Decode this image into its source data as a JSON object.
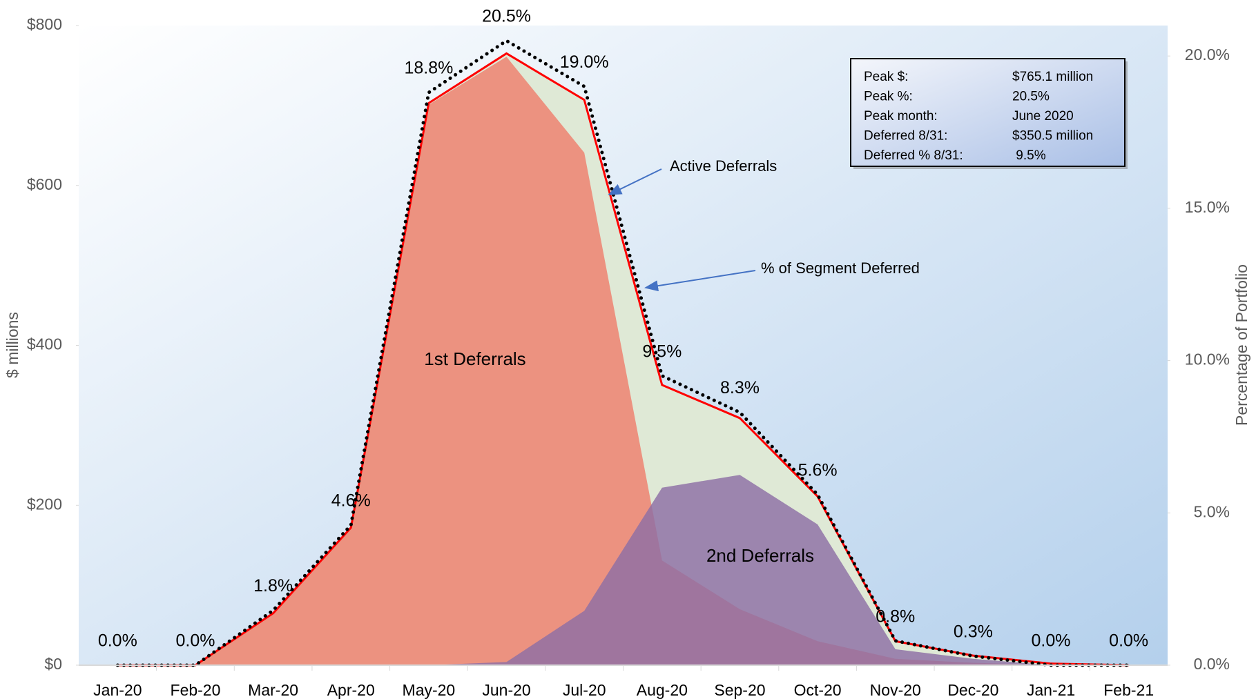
{
  "chart_data": {
    "type": "area",
    "categories": [
      "Jan-20",
      "Feb-20",
      "Mar-20",
      "Apr-20",
      "May-20",
      "Jun-20",
      "Jul-20",
      "Aug-20",
      "Sep-20",
      "Oct-20",
      "Nov-20",
      "Dec-20",
      "Jan-21",
      "Feb-21"
    ],
    "series": [
      {
        "name": "Active Deferrals",
        "kind": "area-line",
        "color": "#ff0000",
        "fill": "#dfe9d6",
        "values": [
          0,
          0,
          65,
          172,
          703,
          765.1,
          707,
          350.5,
          309,
          211,
          30,
          12,
          2,
          0
        ]
      },
      {
        "name": "1st Deferrals",
        "kind": "area",
        "color": "#ef7f6d",
        "values": [
          0,
          0,
          65,
          172,
          701,
          761,
          641,
          131,
          70,
          30,
          8,
          3,
          0,
          0
        ]
      },
      {
        "name": "2nd Deferrals",
        "kind": "area",
        "color": "#8e6fa5",
        "values": [
          0,
          0,
          0,
          0,
          0,
          4,
          68,
          222,
          238,
          176,
          20,
          8,
          0,
          0
        ]
      },
      {
        "name": "% of Segment Deferred",
        "kind": "dotted",
        "axis": "y2",
        "color": "#000000",
        "values": [
          0,
          0,
          1.8,
          4.6,
          18.8,
          20.5,
          19.0,
          9.5,
          8.3,
          5.6,
          0.8,
          0.3,
          0,
          0
        ],
        "value_labels": [
          "0.0%",
          "0.0%",
          "1.8%",
          "4.6%",
          "18.8%",
          "20.5%",
          "19.0%",
          "9.5%",
          "8.3%",
          "5.6%",
          "0.8%",
          "0.3%",
          "0.0%",
          "0.0%"
        ]
      }
    ],
    "ylabel": "$ millions",
    "y2label": "Percentage of Portfolio",
    "ylim": [
      0,
      800
    ],
    "yticks": [
      {
        "value": 0,
        "label": "$0"
      },
      {
        "value": 200,
        "label": "$200"
      },
      {
        "value": 400,
        "label": "$400"
      },
      {
        "value": 600,
        "label": "$600"
      },
      {
        "value": 800,
        "label": "$800"
      }
    ],
    "y2lim": [
      0,
      21
    ],
    "y2ticks": [
      {
        "value": 0,
        "label": "0.0%"
      },
      {
        "value": 5,
        "label": "5.0%"
      },
      {
        "value": 10,
        "label": "10.0%"
      },
      {
        "value": 15,
        "label": "15.0%"
      },
      {
        "value": 20,
        "label": "20.0%"
      }
    ],
    "info_box": [
      {
        "label": "Peak $:",
        "value": "$765.1 million"
      },
      {
        "label": "Peak %:",
        "value": "20.5%"
      },
      {
        "label": "Peak month:",
        "value": "June 2020"
      },
      {
        "label": "Deferred 8/31:",
        "value": "$350.5 million"
      },
      {
        "label": "Deferred % 8/31:",
        "value": " 9.5%"
      }
    ]
  }
}
